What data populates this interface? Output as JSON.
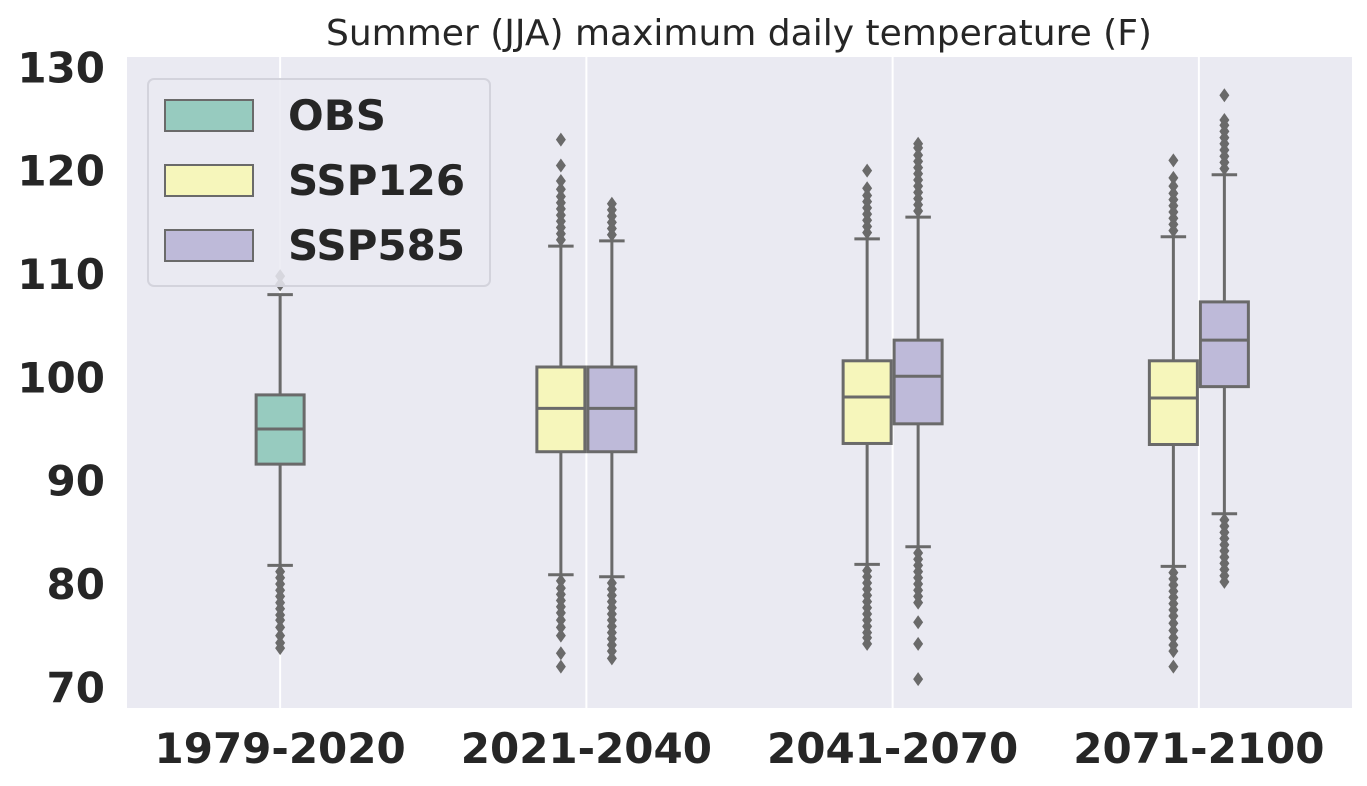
{
  "chart_data": {
    "type": "box",
    "title": "Summer (JJA) maximum daily temperature (F)",
    "xlabel": "",
    "ylabel": "",
    "ylim": [
      68,
      131
    ],
    "yticks": [
      70,
      80,
      90,
      100,
      110,
      120,
      130
    ],
    "categories": [
      "1979-2020",
      "2021-2040",
      "2041-2070",
      "2071-2100"
    ],
    "grid": true,
    "legend_position": "top-left",
    "series": [
      {
        "name": "OBS",
        "color": "#97cbbf",
        "boxes": [
          {
            "category": "1979-2020",
            "q1": 91.6,
            "median": 95.0,
            "q3": 98.3,
            "whisker_low": 81.8,
            "whisker_high": 108.0,
            "outliers": [
              81.2,
              80.6,
              80.0,
              79.4,
              78.8,
              78.2,
              77.6,
              77.0,
              76.5,
              75.8,
              75.0,
              74.3,
              73.8,
              109.0,
              109.8
            ]
          }
        ]
      },
      {
        "name": "SSP126",
        "color": "#f6f6bb",
        "boxes": [
          {
            "category": "2021-2040",
            "q1": 92.8,
            "median": 97.0,
            "q3": 101.0,
            "whisker_low": 80.9,
            "whisker_high": 112.7,
            "outliers": [
              80.3,
              79.6,
              79.0,
              78.4,
              77.8,
              77.2,
              76.5,
              75.8,
              75.0,
              73.3,
              72.0,
              113.3,
              113.9,
              114.5,
              115.1,
              115.7,
              116.3,
              116.9,
              117.5,
              118.2,
              119.0,
              120.5,
              123.0
            ]
          },
          {
            "category": "2041-2070",
            "q1": 93.6,
            "median": 98.1,
            "q3": 101.6,
            "whisker_low": 81.9,
            "whisker_high": 113.4,
            "outliers": [
              81.3,
              80.7,
              80.1,
              79.5,
              78.9,
              78.3,
              77.7,
              77.1,
              76.5,
              75.9,
              75.3,
              74.8,
              74.2,
              114.0,
              114.6,
              115.2,
              115.8,
              116.4,
              117.0,
              117.6,
              118.3,
              120.0
            ]
          },
          {
            "category": "2071-2100",
            "q1": 93.5,
            "median": 98.0,
            "q3": 101.6,
            "whisker_low": 81.7,
            "whisker_high": 113.6,
            "outliers": [
              81.1,
              80.5,
              79.9,
              79.3,
              78.7,
              78.1,
              77.5,
              76.9,
              76.2,
              75.5,
              74.8,
              74.1,
              73.5,
              72.0,
              114.2,
              114.8,
              115.4,
              116.0,
              116.6,
              117.2,
              117.8,
              118.5,
              119.3,
              121.0
            ]
          }
        ]
      },
      {
        "name": "SSP585",
        "color": "#bebad9",
        "boxes": [
          {
            "category": "2021-2040",
            "q1": 92.8,
            "median": 97.0,
            "q3": 101.0,
            "whisker_low": 80.7,
            "whisker_high": 113.2,
            "outliers": [
              80.1,
              79.5,
              78.9,
              78.3,
              77.7,
              77.1,
              76.5,
              75.9,
              75.3,
              74.7,
              74.1,
              73.5,
              72.8,
              113.8,
              114.4,
              115.0,
              115.6,
              116.2,
              116.8
            ]
          },
          {
            "category": "2041-2070",
            "q1": 95.5,
            "median": 100.1,
            "q3": 103.6,
            "whisker_low": 83.6,
            "whisker_high": 115.5,
            "outliers": [
              83.0,
              82.4,
              81.8,
              81.2,
              80.6,
              80.0,
              79.4,
              78.8,
              78.2,
              76.3,
              74.2,
              70.8,
              116.1,
              116.7,
              117.3,
              117.9,
              118.5,
              119.1,
              119.7,
              120.3,
              120.9,
              121.5,
              122.2,
              122.6
            ]
          },
          {
            "category": "2071-2100",
            "q1": 99.1,
            "median": 103.6,
            "q3": 107.3,
            "whisker_low": 86.8,
            "whisker_high": 119.6,
            "outliers": [
              86.2,
              85.6,
              85.0,
              84.4,
              83.8,
              83.2,
              82.6,
              82.0,
              81.4,
              80.8,
              80.2,
              120.2,
              120.8,
              121.4,
              122.0,
              122.6,
              123.2,
              123.8,
              124.4,
              124.9,
              127.3
            ]
          }
        ]
      }
    ]
  }
}
